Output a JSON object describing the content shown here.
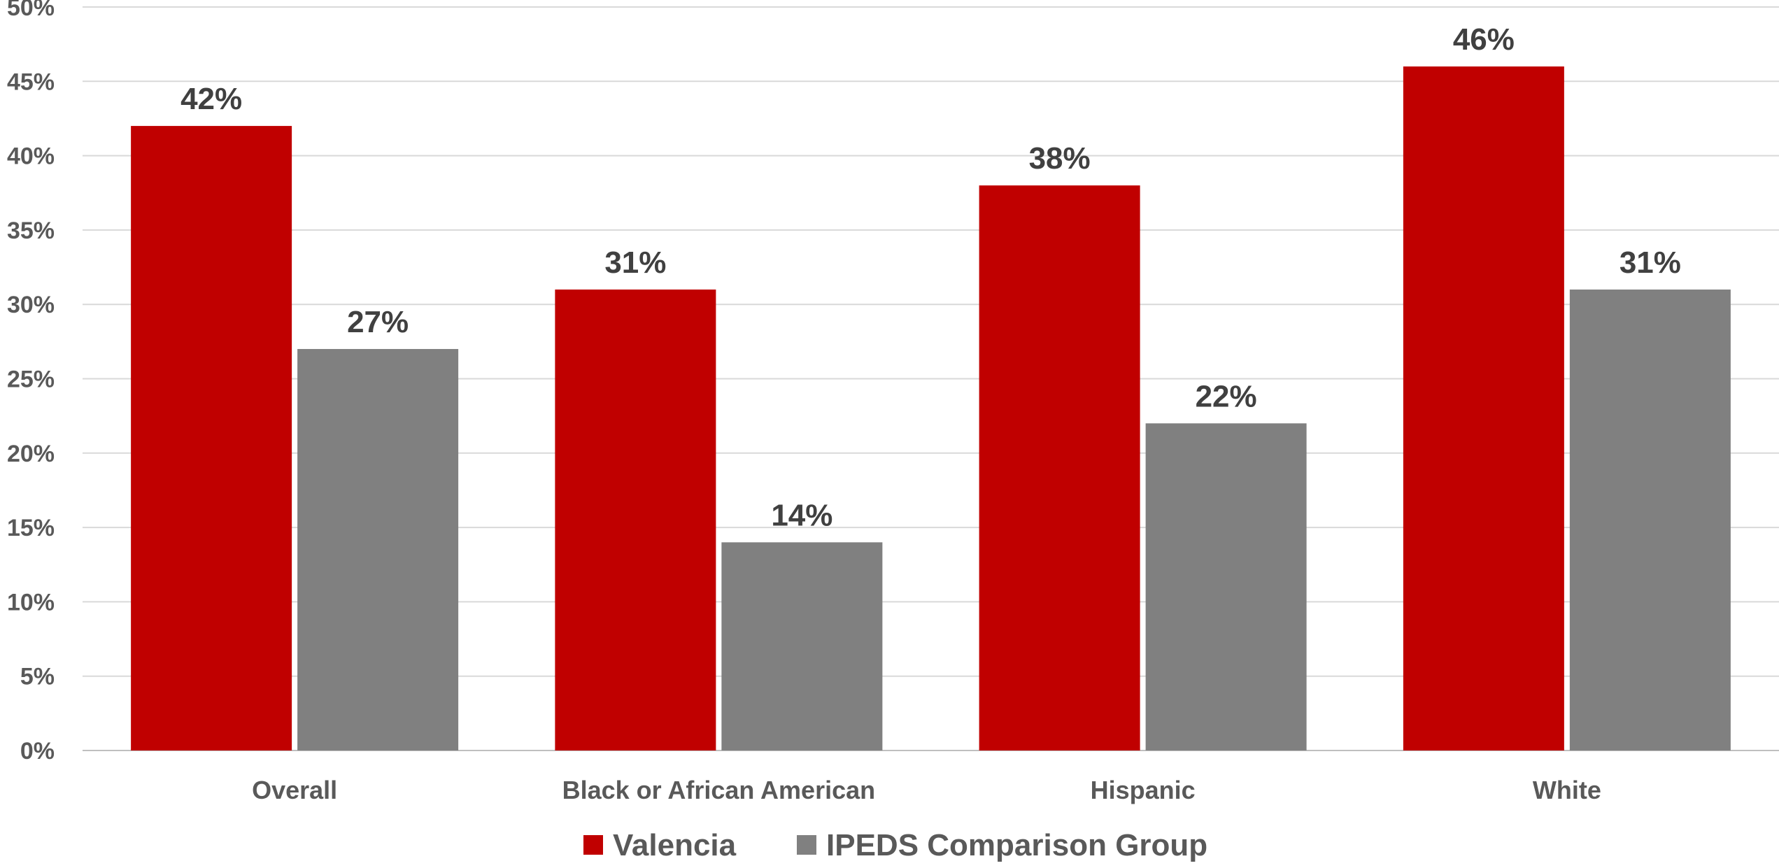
{
  "chart_data": {
    "type": "bar",
    "title": "",
    "xlabel": "",
    "ylabel": "",
    "categories": [
      "Overall",
      "Black or African American",
      "Hispanic",
      "White"
    ],
    "series": [
      {
        "name": "Valencia",
        "values": [
          42,
          31,
          38,
          46
        ],
        "labels": [
          "42%",
          "31%",
          "38%",
          "46%"
        ],
        "color": "#c00000"
      },
      {
        "name": "IPEDS Comparison Group",
        "values": [
          27,
          14,
          22,
          31
        ],
        "labels": [
          "27%",
          "14%",
          "22%",
          "31%"
        ],
        "color": "#808080"
      }
    ],
    "ylim": [
      0,
      50
    ],
    "yticks": [
      0,
      5,
      10,
      15,
      20,
      25,
      30,
      35,
      40,
      45,
      50
    ],
    "ytick_labels": [
      "0%",
      "5%",
      "10%",
      "15%",
      "20%",
      "25%",
      "30%",
      "35%",
      "40%",
      "45%",
      "50%"
    ],
    "grid": true,
    "legend_position": "bottom"
  }
}
